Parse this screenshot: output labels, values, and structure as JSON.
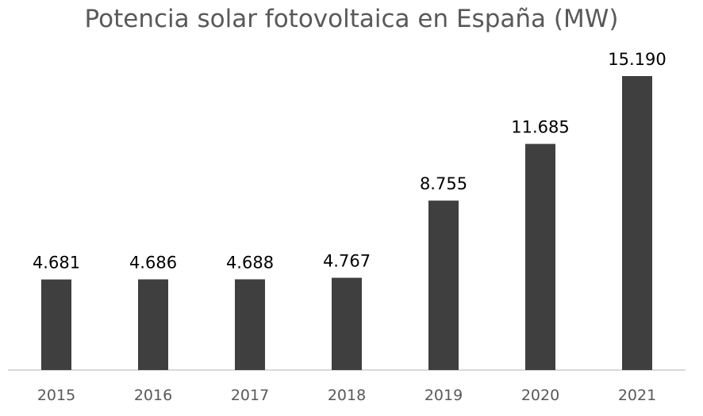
{
  "chart_data": {
    "type": "bar",
    "title": "Potencia solar fotovoltaica en España (MW)",
    "categories": [
      "2015",
      "2016",
      "2017",
      "2018",
      "2019",
      "2020",
      "2021"
    ],
    "values": [
      4681,
      4686,
      4688,
      4767,
      8755,
      11685,
      15190
    ],
    "data_labels": [
      "4.681",
      "4.686",
      "4.688",
      "4.767",
      "8.755",
      "11.685",
      "15.190"
    ],
    "xlabel": "",
    "ylabel": "",
    "ylim": [
      0,
      15190
    ],
    "grid": false,
    "legend": "none",
    "bar_color": "#3f3f3f",
    "axis_color": "#d9d9d9"
  }
}
